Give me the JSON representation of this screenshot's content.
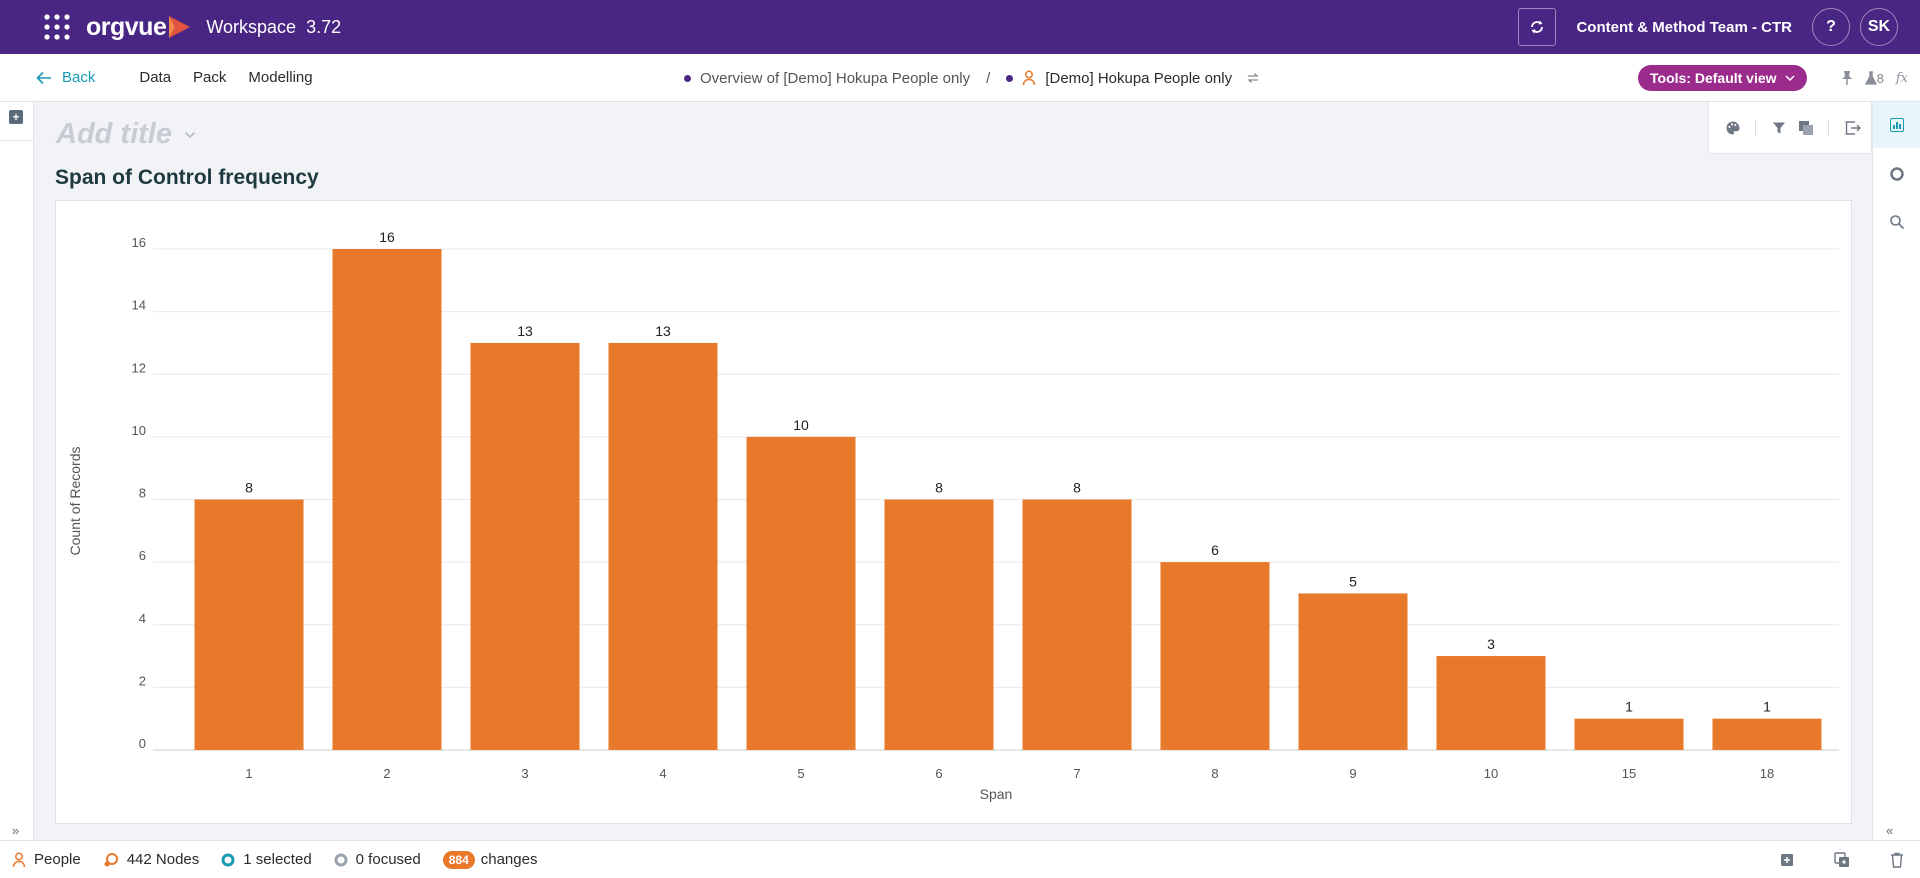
{
  "app": {
    "logo": "orgvue",
    "workspace_label": "Workspace",
    "version": "3.72",
    "team": "Content & Method Team - CTR",
    "help": "?",
    "avatar": "SK"
  },
  "nav": {
    "back": "Back",
    "menu": [
      "Data",
      "Pack",
      "Modelling"
    ],
    "breadcrumb_parent": "Overview of [Demo] Hokupa People only",
    "breadcrumb_sep": "/",
    "breadcrumb_current": "[Demo] Hokupa People only",
    "tools_button": "Tools: Default view",
    "flask_count": "8",
    "fx": "fx"
  },
  "page": {
    "title_placeholder": "Add title",
    "chart_title": "Span of Control frequency"
  },
  "colors": {
    "brand": "#4a2684",
    "bar": "#e8782a",
    "tools": "#9c2c8c",
    "link": "#1a9bb5"
  },
  "chart_data": {
    "type": "bar",
    "categories": [
      "1",
      "2",
      "3",
      "4",
      "5",
      "6",
      "7",
      "8",
      "9",
      "10",
      "15",
      "18"
    ],
    "values": [
      8,
      16,
      13,
      13,
      10,
      8,
      8,
      6,
      5,
      3,
      1,
      1
    ],
    "ylim": [
      0,
      16
    ],
    "yticks": [
      0,
      2,
      4,
      6,
      8,
      10,
      12,
      14,
      16
    ],
    "xlabel": "Span",
    "ylabel": "Count of Records",
    "grid": true,
    "data_labels": true
  },
  "status": {
    "dimension": "People",
    "nodes": "442 Nodes",
    "selected": "1 selected",
    "focused": "0 focused",
    "changes_count": "884",
    "changes_label": "changes"
  }
}
